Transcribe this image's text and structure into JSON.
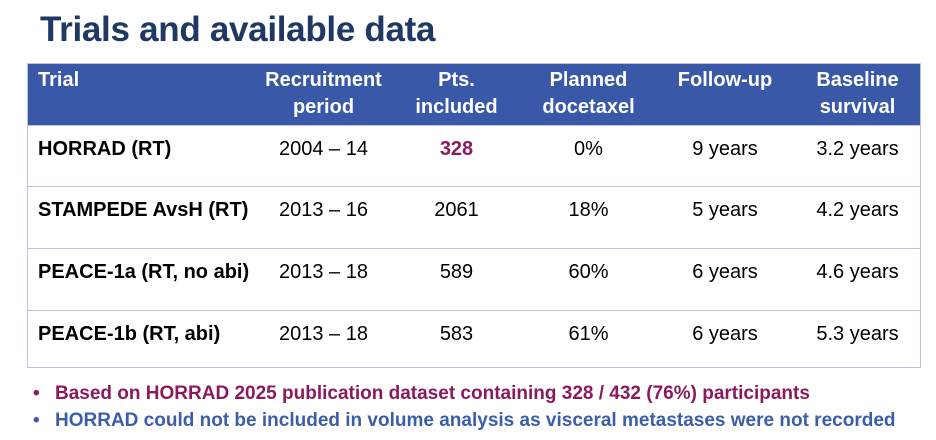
{
  "title": "Trials and available data",
  "table": {
    "headers": [
      [
        "Trial"
      ],
      [
        "Recruitment",
        "period"
      ],
      [
        "Pts.",
        "included"
      ],
      [
        "Planned",
        "docetaxel"
      ],
      [
        "Follow-up"
      ],
      [
        "Baseline",
        "survival"
      ]
    ],
    "rows": [
      [
        "HORRAD (RT)",
        "2004 – 14",
        "328",
        "0%",
        "9 years",
        "3.2 years"
      ],
      [
        "STAMPEDE AvsH (RT)",
        "2013 – 16",
        "2061",
        "18%",
        "5 years",
        "4.2 years"
      ],
      [
        "PEACE-1a (RT, no abi)",
        "2013 – 18",
        "589",
        "60%",
        "6 years",
        "4.6 years"
      ],
      [
        "PEACE-1b (RT, abi)",
        "2013 – 18",
        "583",
        "61%",
        "6 years",
        "5.3 years"
      ]
    ]
  },
  "notes": [
    "Based on HORRAD 2025 publication dataset containing 328 / 432 (76%) participants",
    "HORRAD could not be included in volume analysis as visceral metastases were not recorded"
  ],
  "colors": {
    "title": "#1f3864",
    "header_bg": "#3a58a8",
    "highlight": "#8b1a5c",
    "note_blue": "#3a5ea8"
  }
}
